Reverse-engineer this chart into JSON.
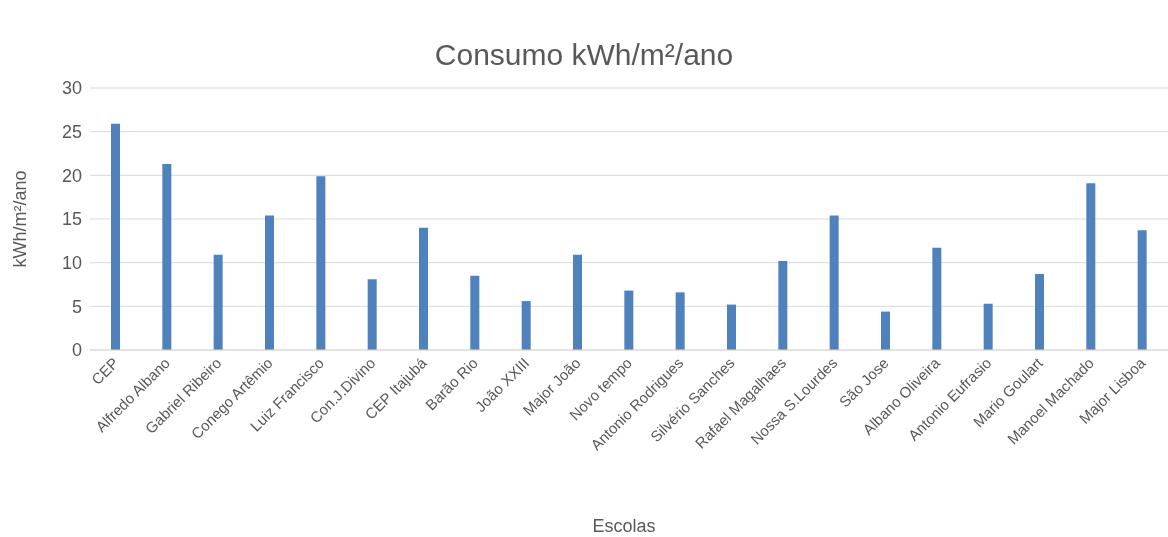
{
  "chart_data": {
    "type": "bar",
    "title": "Consumo kWh/m²/ano",
    "xlabel": "Escolas",
    "ylabel": "kWh/m²/ano",
    "categories": [
      "CEP",
      "Alfredo Albano",
      "Gabriel Ribeiro",
      "Conego Artêmio",
      "Luiz Francisco",
      "Con.J.Divino",
      "CEP Itajubá",
      "Barão Rio",
      "João XXIII",
      "Major João",
      "Novo tempo",
      "Antonio Rodrigues",
      "Silvério Sanches",
      "Rafael Magalhaes",
      "Nossa S.Lourdes",
      "São Jose",
      "Albano Oliveira",
      "Antonio Eufrasio",
      "Mario Goulart",
      "Manoel Machado",
      "Major Lisboa"
    ],
    "values": [
      25.9,
      21.3,
      10.9,
      15.4,
      19.9,
      8.1,
      14.0,
      8.5,
      5.6,
      10.9,
      6.8,
      6.6,
      5.2,
      10.2,
      15.4,
      4.4,
      11.7,
      5.3,
      8.7,
      19.1,
      13.7
    ],
    "color": "#4f81bd",
    "ylim": [
      0,
      30
    ],
    "yticks": [
      0,
      5,
      10,
      15,
      20,
      25,
      30
    ],
    "grid": "y"
  }
}
